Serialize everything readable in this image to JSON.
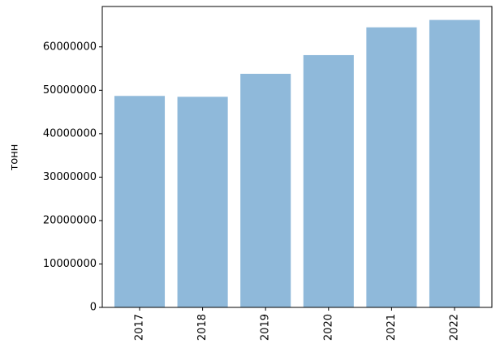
{
  "chart_data": {
    "type": "bar",
    "y_label": "тонн",
    "categories": [
      "2017",
      "2018",
      "2019",
      "2020",
      "2021",
      "2022"
    ],
    "values": [
      48700000,
      48500000,
      53800000,
      58100000,
      64500000,
      66200000
    ],
    "color": "#8fb9da",
    "ylim": [
      0,
      69300000
    ],
    "yticks": [
      0,
      10000000,
      20000000,
      30000000,
      40000000,
      50000000,
      60000000
    ]
  }
}
